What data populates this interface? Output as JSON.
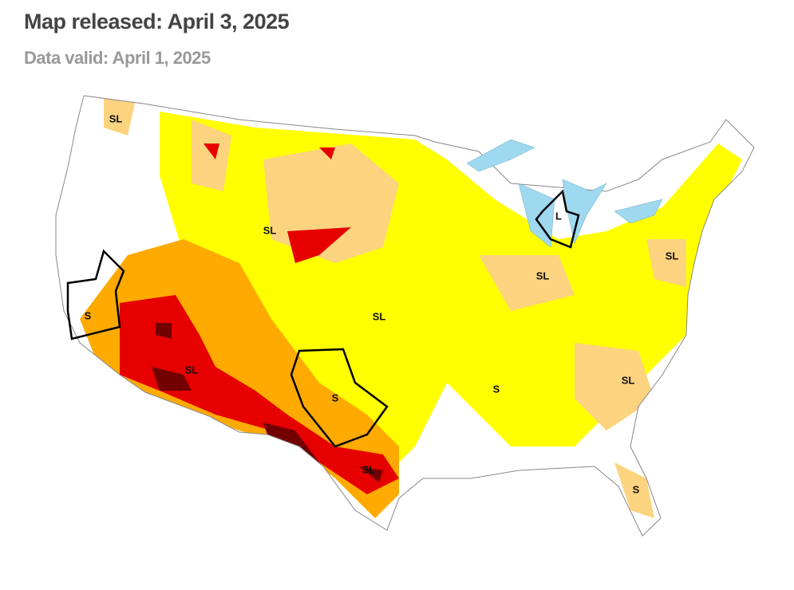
{
  "header": {
    "title": "Map released: April 3, 2025",
    "subtitle": "Data valid: April 1, 2025"
  },
  "map": {
    "labels": [
      "SL",
      "SL",
      "S",
      "SL",
      "SL",
      "S",
      "SL",
      "SL",
      "L",
      "SL",
      "S",
      "SL",
      "S"
    ]
  }
}
